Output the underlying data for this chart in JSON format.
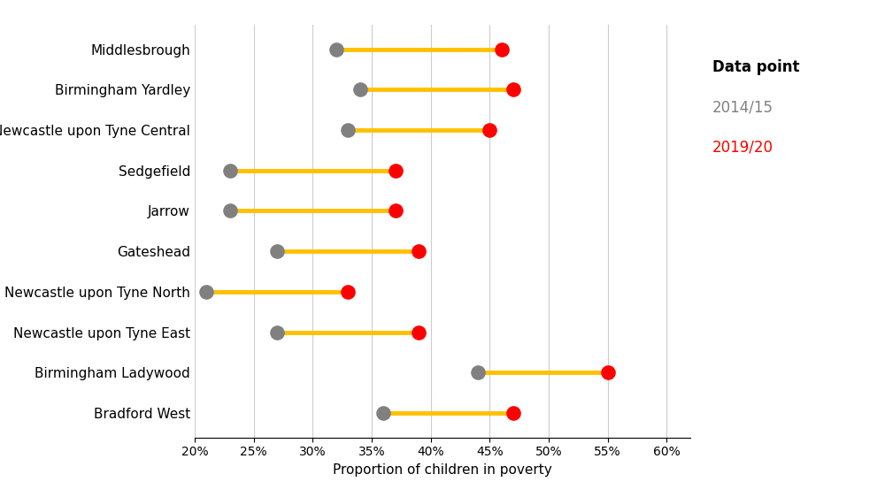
{
  "categories": [
    "Middlesbrough",
    "Birmingham Yardley",
    "Newcastle upon Tyne Central",
    "Sedgefield",
    "Jarrow",
    "Gateshead",
    "Newcastle upon Tyne North",
    "Newcastle upon Tyne East",
    "Birmingham Ladywood",
    "Bradford West"
  ],
  "values_2014": [
    0.32,
    0.34,
    0.33,
    0.23,
    0.23,
    0.27,
    0.21,
    0.27,
    0.44,
    0.36
  ],
  "values_2019": [
    0.46,
    0.47,
    0.45,
    0.37,
    0.37,
    0.39,
    0.33,
    0.39,
    0.55,
    0.47
  ],
  "color_2014": "#808080",
  "color_2019": "#ff0000",
  "line_color": "#FFC000",
  "background_color": "#ffffff",
  "xlabel": "Proportion of children in poverty",
  "xlim": [
    0.2,
    0.62
  ],
  "xticks": [
    0.2,
    0.25,
    0.3,
    0.35,
    0.4,
    0.45,
    0.5,
    0.55,
    0.6
  ],
  "xtick_labels": [
    "20%",
    "25%",
    "30%",
    "35%",
    "40%",
    "45%",
    "50%",
    "55%",
    "60%"
  ],
  "legend_title": "Data point",
  "legend_label_2014": "2014/15",
  "legend_label_2019": "2019/20",
  "dot_size": 120,
  "line_width": 3.5,
  "axis_fontsize": 11,
  "tick_fontsize": 10,
  "legend_title_fontsize": 12,
  "legend_fontsize": 12
}
